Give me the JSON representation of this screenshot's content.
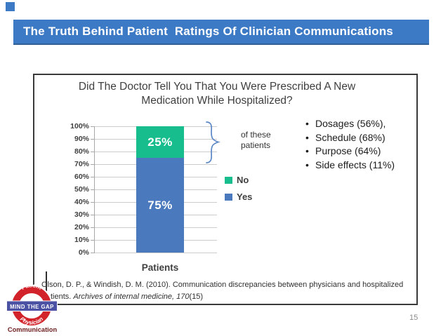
{
  "slide": {
    "title": "The Truth Behind Patient  Ratings Of Clinician Communications",
    "page_number": "15"
  },
  "chart_data": {
    "type": "bar",
    "stacked": true,
    "title": "Did The Doctor Tell You That You Were Prescribed A New Medication While Hospitalized?",
    "title_lines": [
      "Did The Doctor Tell You That You Were Prescribed A New",
      "Medication While Hospitalized?"
    ],
    "categories": [
      "Patients"
    ],
    "series": [
      {
        "name": "No",
        "values": [
          25
        ],
        "label": "25%",
        "color": "#17bd8d"
      },
      {
        "name": "Yes",
        "values": [
          75
        ],
        "label": "75%",
        "color": "#4b79bd"
      }
    ],
    "xlabel": "Patients",
    "ylabel": "",
    "ylim": [
      0,
      100
    ],
    "yticks": [
      "100%",
      "90%",
      "80%",
      "70%",
      "60%",
      "50%",
      "40%",
      "30%",
      "20%",
      "10%",
      "0%"
    ],
    "grid": true,
    "legend_position": "right",
    "legend": [
      {
        "label": "No",
        "color": "#17bd8d"
      },
      {
        "label": "Yes",
        "color": "#4b79bd"
      }
    ]
  },
  "annotation": {
    "brace_label_line1": "of these",
    "brace_label_line2": "patients",
    "bullets": [
      "Dosages (56%),",
      "Schedule (68%)",
      "Purpose (64%)",
      "Side effects (11%)"
    ]
  },
  "citation": {
    "line1": "Olson, D. P., & Windish, D. M. (2010). Communication discrepancies between physicians and hospitalized",
    "line2_prefix": "tients. ",
    "line2_italic": "Archives of internal medicine, 170",
    "line2_suffix": "(15)"
  },
  "logo": {
    "top_text": "Patient",
    "bar_text": "MIND THE GAP",
    "bottom_text": "Physician",
    "caption": "Communication",
    "ring_color": "#d2232a",
    "bar_color": "#4b52a3"
  },
  "colors": {
    "title_bar": "#3d7ac6",
    "bar_yes": "#4b79bd",
    "bar_no": "#17bd8d",
    "brace": "#5b87c5",
    "gridline": "#cccccc"
  }
}
